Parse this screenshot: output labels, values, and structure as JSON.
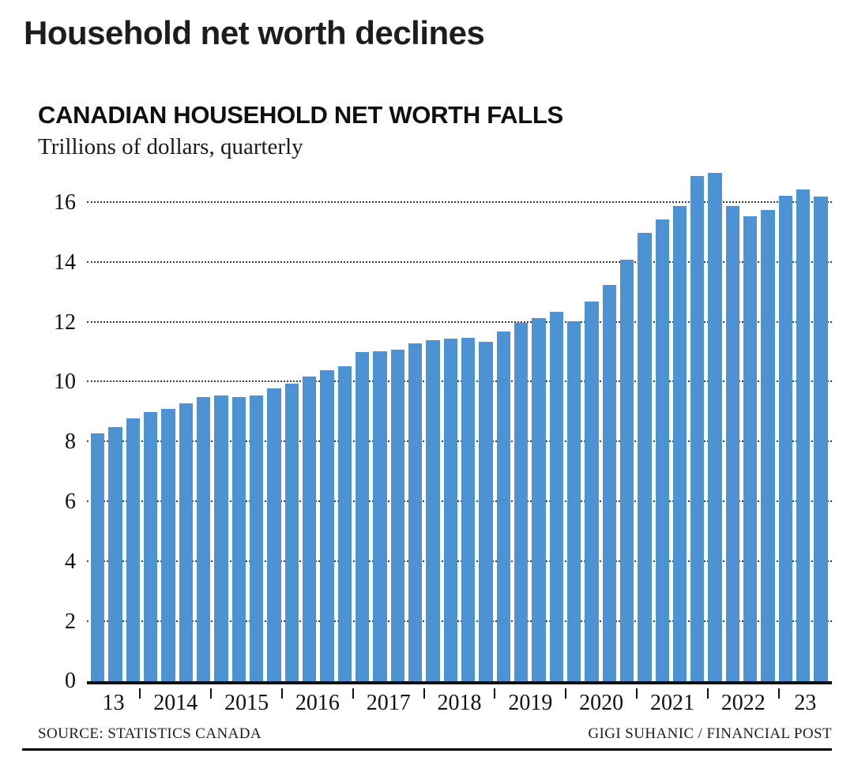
{
  "page": {
    "headline": "Household net worth declines"
  },
  "chart_data": {
    "type": "bar",
    "title": "CANADIAN HOUSEHOLD NET WORTH FALLS",
    "subtitle": "Trillions of dollars, quarterly",
    "xlabel": "",
    "ylabel": "Trillions of dollars",
    "ylim": [
      0,
      16
    ],
    "yticks": [
      0,
      2,
      4,
      6,
      8,
      10,
      12,
      14,
      16
    ],
    "grid": "horizontal-dotted",
    "legend": "none",
    "bar_color": "#4d92d3",
    "x_groups": [
      {
        "label": "13",
        "quarters": 3
      },
      {
        "label": "2014",
        "quarters": 4
      },
      {
        "label": "2015",
        "quarters": 4
      },
      {
        "label": "2016",
        "quarters": 4
      },
      {
        "label": "2017",
        "quarters": 4
      },
      {
        "label": "2018",
        "quarters": 4
      },
      {
        "label": "2019",
        "quarters": 4
      },
      {
        "label": "2020",
        "quarters": 4
      },
      {
        "label": "2021",
        "quarters": 4
      },
      {
        "label": "2022",
        "quarters": 4
      },
      {
        "label": "23",
        "quarters": 3
      }
    ],
    "series": [
      {
        "name": "Canadian household net worth (trillions of dollars)",
        "values": [
          8.3,
          8.5,
          8.8,
          9.0,
          9.1,
          9.3,
          9.5,
          9.55,
          9.5,
          9.55,
          9.8,
          9.95,
          10.2,
          10.4,
          10.55,
          11.0,
          11.05,
          11.1,
          11.3,
          11.4,
          11.45,
          11.5,
          11.35,
          11.7,
          12.0,
          12.15,
          12.35,
          12.05,
          12.7,
          13.25,
          14.1,
          15.0,
          15.45,
          15.9,
          16.9,
          17.0,
          15.9,
          15.55,
          15.75,
          16.25,
          16.45,
          16.2
        ]
      }
    ]
  },
  "footer": {
    "source": "SOURCE: STATISTICS CANADA",
    "credit": "GIGI SUHANIC / FINANCIAL POST"
  }
}
